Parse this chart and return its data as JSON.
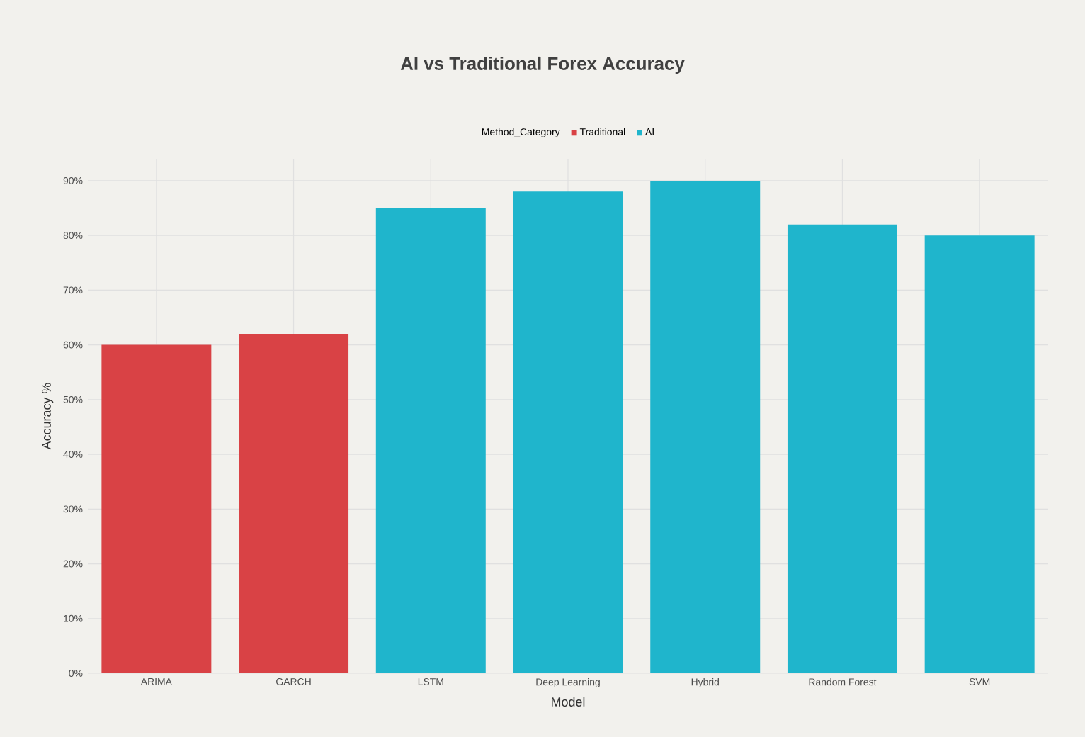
{
  "chart_data": {
    "type": "bar",
    "title": "AI vs Traditional Forex Accuracy",
    "xlabel": "Model",
    "ylabel": "Accuracy %",
    "legend_title": "Method_Category",
    "categories": [
      "ARIMA",
      "GARCH",
      "LSTM",
      "Deep Learning",
      "Hybrid",
      "Random Forest",
      "SVM"
    ],
    "series": [
      {
        "name": "Traditional",
        "color": "#d94245",
        "values": [
          60,
          62,
          null,
          null,
          null,
          null,
          null
        ]
      },
      {
        "name": "AI",
        "color": "#1fb5cc",
        "values": [
          null,
          null,
          85,
          88,
          90,
          82,
          80
        ]
      }
    ],
    "ylim": [
      0,
      94
    ],
    "yticks": [
      {
        "value": 0,
        "label": "0%"
      },
      {
        "value": 10,
        "label": "10%"
      },
      {
        "value": 20,
        "label": "20%"
      },
      {
        "value": 30,
        "label": "30%"
      },
      {
        "value": 40,
        "label": "40%"
      },
      {
        "value": 50,
        "label": "50%"
      },
      {
        "value": 60,
        "label": "60%"
      },
      {
        "value": 70,
        "label": "70%"
      },
      {
        "value": 80,
        "label": "80%"
      },
      {
        "value": 90,
        "label": "90%"
      }
    ],
    "grid": true,
    "legend": "top"
  }
}
